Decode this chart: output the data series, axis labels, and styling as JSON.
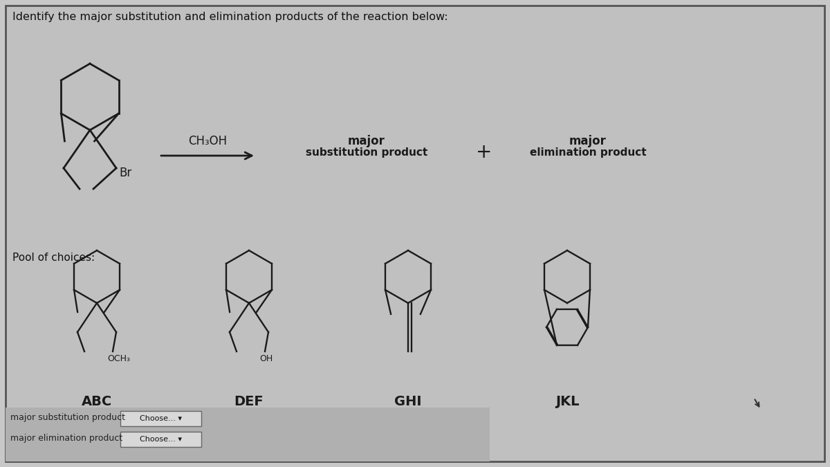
{
  "title": "Identify the major substitution and elimination products of the reaction below:",
  "bg_color": "#c8c8c8",
  "panel_color": "#c0c0c0",
  "line_color": "#1a1a1a",
  "text_color": "#111111",
  "reagent": "CH₃OH",
  "product1_label_line1": "major",
  "product1_label_line2": "substitution product",
  "plus_label": "+",
  "product2_label_line1": "major",
  "product2_label_line2": "elimination product",
  "pool_label": "Pool of choices:",
  "choice_labels": [
    "ABC",
    "DEF",
    "GHI",
    "JKL"
  ],
  "choice_sublabels": [
    "OCH₃",
    "OH",
    "",
    ""
  ],
  "bottom_labels": [
    "major substitution product",
    "major elimination product"
  ],
  "bottom_dropdowns": [
    "Choose... ▾",
    "Choose... ▾"
  ],
  "figsize": [
    12.0,
    6.75
  ],
  "dpi": 100
}
